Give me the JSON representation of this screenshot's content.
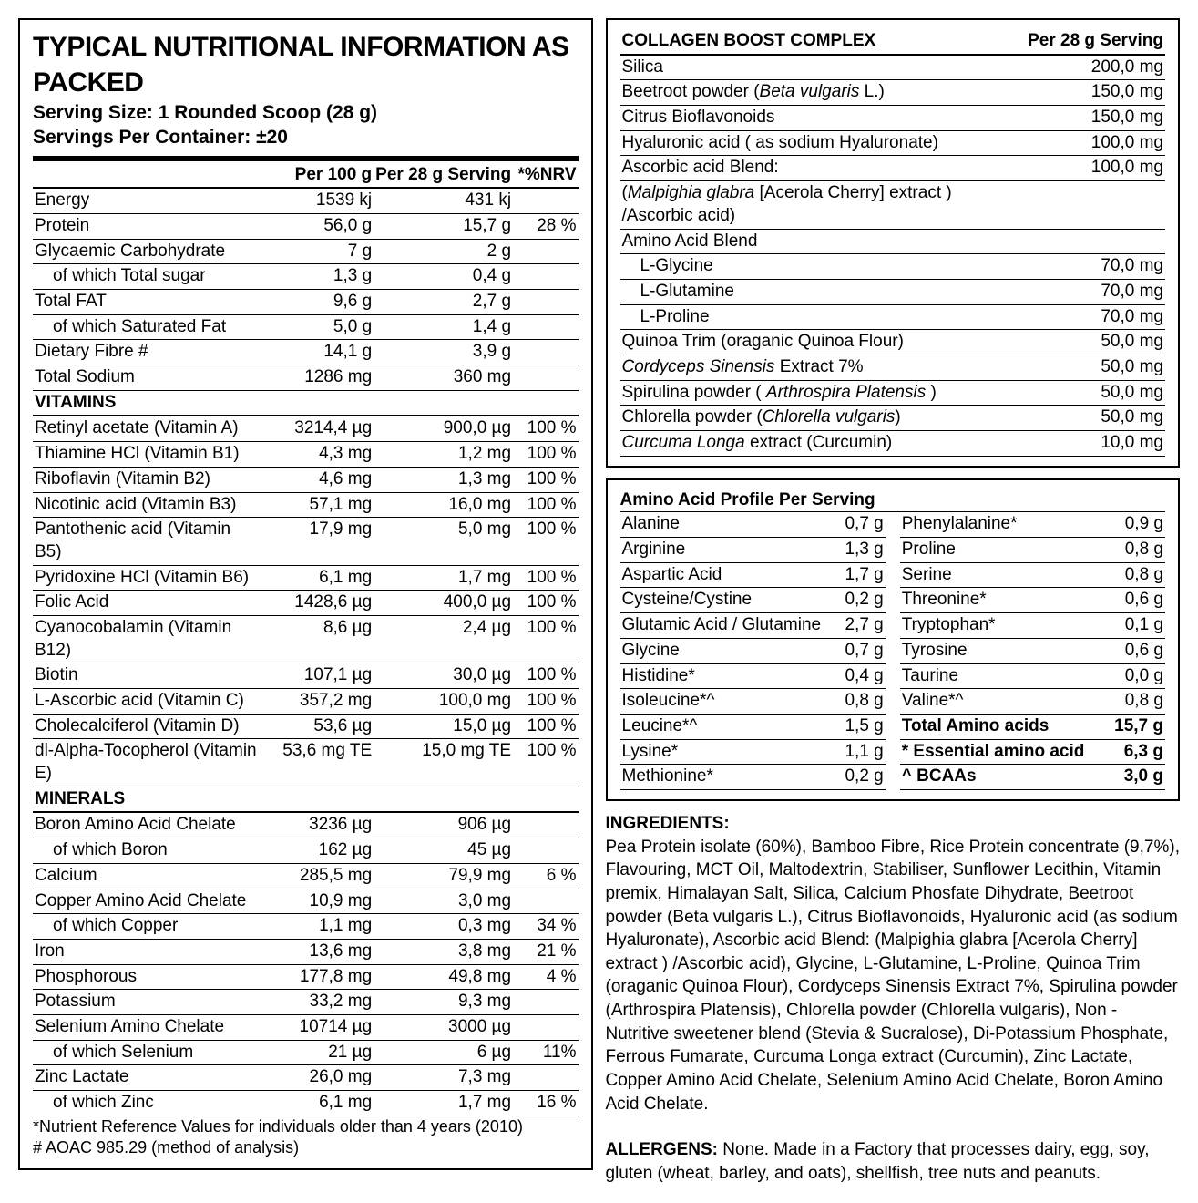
{
  "left": {
    "title": "TYPICAL NUTRITIONAL INFORMATION AS PACKED",
    "serving_size": "Serving Size: 1 Rounded Scoop (28 g)",
    "servings": "Servings Per Container: ±20",
    "cols": {
      "c1": "Per 100 g",
      "c2": "Per 28 g Serving",
      "c3": "*%NRV"
    },
    "sections": [
      {
        "rows": [
          {
            "l": "Energy",
            "c1": "1539 kj",
            "c2": "431 kj",
            "c3": ""
          },
          {
            "l": "Protein",
            "c1": "56,0 g",
            "c2": "15,7 g",
            "c3": "28 %"
          },
          {
            "l": "Glycaemic Carbohydrate",
            "c1": "7 g",
            "c2": "2 g",
            "c3": ""
          },
          {
            "l": "of which Total sugar",
            "indent": true,
            "c1": "1,3 g",
            "c2": "0,4 g",
            "c3": ""
          },
          {
            "l": "Total FAT",
            "c1": "9,6 g",
            "c2": "2,7 g",
            "c3": ""
          },
          {
            "l": "of which Saturated Fat",
            "indent": true,
            "c1": "5,0 g",
            "c2": "1,4 g",
            "c3": ""
          },
          {
            "l": "Dietary Fibre #",
            "c1": "14,1 g",
            "c2": "3,9 g",
            "c3": ""
          },
          {
            "l": "Total Sodium",
            "c1": "1286 mg",
            "c2": "360 mg",
            "c3": ""
          }
        ]
      },
      {
        "title": "VITAMINS",
        "rows": [
          {
            "l": "Retinyl acetate (Vitamin A)",
            "c1": "3214,4 µg",
            "c2": "900,0 µg",
            "c3": "100 %"
          },
          {
            "l": "Thiamine HCl (Vitamin B1)",
            "c1": "4,3 mg",
            "c2": "1,2 mg",
            "c3": "100 %"
          },
          {
            "l": "Riboflavin (Vitamin B2)",
            "c1": "4,6 mg",
            "c2": "1,3 mg",
            "c3": "100 %"
          },
          {
            "l": "Nicotinic acid (Vitamin B3)",
            "c1": "57,1 mg",
            "c2": "16,0 mg",
            "c3": "100 %"
          },
          {
            "l": "Pantothenic acid (Vitamin B5)",
            "c1": "17,9 mg",
            "c2": "5,0 mg",
            "c3": "100 %"
          },
          {
            "l": "Pyridoxine HCl (Vitamin B6)",
            "c1": "6,1 mg",
            "c2": "1,7 mg",
            "c3": "100 %"
          },
          {
            "l": "Folic Acid",
            "c1": "1428,6 µg",
            "c2": "400,0 µg",
            "c3": "100 %"
          },
          {
            "l": "Cyanocobalamin (Vitamin B12)",
            "c1": "8,6 µg",
            "c2": "2,4 µg",
            "c3": "100 %"
          },
          {
            "l": "Biotin",
            "c1": "107,1 µg",
            "c2": "30,0 µg",
            "c3": "100 %"
          },
          {
            "l": "L-Ascorbic acid (Vitamin C)",
            "c1": "357,2 mg",
            "c2": "100,0 mg",
            "c3": "100 %"
          },
          {
            "l": "Cholecalciferol (Vitamin D)",
            "c1": "53,6 µg",
            "c2": "15,0 µg",
            "c3": "100 %"
          },
          {
            "l": "dl-Alpha-Tocopherol (Vitamin E)",
            "c1": "53,6 mg TE",
            "c2": "15,0 mg TE",
            "c3": "100 %"
          }
        ]
      },
      {
        "title": "MINERALS",
        "rows": [
          {
            "l": "Boron Amino Acid Chelate",
            "c1": "3236 µg",
            "c2": "906 µg",
            "c3": ""
          },
          {
            "l": "of which Boron",
            "indent": true,
            "c1": "162 µg",
            "c2": "45 µg",
            "c3": ""
          },
          {
            "l": "Calcium",
            "c1": "285,5 mg",
            "c2": "79,9 mg",
            "c3": "6 %"
          },
          {
            "l": "Copper Amino Acid Chelate",
            "c1": "10,9 mg",
            "c2": "3,0 mg",
            "c3": ""
          },
          {
            "l": "of which Copper",
            "indent": true,
            "c1": "1,1 mg",
            "c2": "0,3 mg",
            "c3": "34 %"
          },
          {
            "l": "Iron",
            "c1": "13,6 mg",
            "c2": "3,8 mg",
            "c3": "21 %"
          },
          {
            "l": "Phosphorous",
            "c1": "177,8 mg",
            "c2": "49,8 mg",
            "c3": "4 %"
          },
          {
            "l": "Potassium",
            "c1": "33,2 mg",
            "c2": "9,3 mg",
            "c3": ""
          },
          {
            "l": "Selenium Amino Chelate",
            "c1": "10714 µg",
            "c2": "3000 µg",
            "c3": ""
          },
          {
            "l": "of which Selenium",
            "indent": true,
            "c1": "21 µg",
            "c2": "6 µg",
            "c3": "11%"
          },
          {
            "l": "Zinc Lactate",
            "c1": "26,0 mg",
            "c2": "7,3 mg",
            "c3": ""
          },
          {
            "l": "of which Zinc",
            "indent": true,
            "c1": "6,1 mg",
            "c2": "1,7 mg",
            "c3": "16 %"
          }
        ]
      }
    ],
    "foot1": "*Nutrient Reference Values for individuals older than 4 years (2010)",
    "foot2": "# AOAC 985.29 (method of analysis)"
  },
  "collagen": {
    "title": "COLLAGEN BOOST COMPLEX",
    "col": "Per 28 g Serving",
    "rows": [
      {
        "l": "Silica",
        "v": "200,0 mg"
      },
      {
        "html": "Beetroot powder (<i>Beta vulgaris</i> L.)",
        "v": "150,0 mg"
      },
      {
        "l": "Citrus Bioflavonoids",
        "v": "150,0 mg"
      },
      {
        "l": "Hyaluronic acid ( as sodium Hyaluronate)",
        "v": "100,0 mg"
      },
      {
        "l": "Ascorbic acid Blend:",
        "v": "100,0 mg"
      },
      {
        "html": "(<i>Malpighia glabra</i> [Acerola Cherry] extract ) /Ascorbic acid)",
        "v": ""
      },
      {
        "l": "Amino Acid Blend",
        "v": ""
      },
      {
        "l": "L-Glycine",
        "indent": true,
        "v": "70,0 mg"
      },
      {
        "l": "L-Glutamine",
        "indent": true,
        "v": "70,0 mg"
      },
      {
        "l": "L-Proline",
        "indent": true,
        "v": "70,0 mg"
      },
      {
        "l": "Quinoa Trim (oraganic Quinoa Flour)",
        "v": "50,0 mg"
      },
      {
        "html": "<i>Cordyceps Sinensis</i> Extract 7%",
        "v": "50,0 mg"
      },
      {
        "html": "Spirulina powder ( <i>Arthrospira Platensis</i> )",
        "v": "50,0 mg"
      },
      {
        "html": "Chlorella powder (<i>Chlorella vulgaris</i>)",
        "v": "50,0 mg"
      },
      {
        "html": "<i>Curcuma Longa</i> extract (Curcumin)",
        "v": "10,0 mg"
      }
    ]
  },
  "amino": {
    "title": "Amino Acid Profile Per Serving",
    "left": [
      {
        "l": "Alanine",
        "v": "0,7 g"
      },
      {
        "l": "Arginine",
        "v": "1,3 g"
      },
      {
        "l": "Aspartic Acid",
        "v": "1,7 g"
      },
      {
        "l": "Cysteine/Cystine",
        "v": "0,2 g"
      },
      {
        "l": "Glutamic Acid / Glutamine",
        "v": "2,7 g"
      },
      {
        "l": "Glycine",
        "v": "0,7 g"
      },
      {
        "l": "Histidine*",
        "v": "0,4 g"
      },
      {
        "l": "Isoleucine*^",
        "v": "0,8 g"
      },
      {
        "l": "Leucine*^",
        "v": "1,5 g"
      },
      {
        "l": "Lysine*",
        "v": "1,1 g"
      },
      {
        "l": "Methionine*",
        "v": "0,2 g"
      }
    ],
    "right": [
      {
        "l": "Phenylalanine*",
        "v": "0,9 g"
      },
      {
        "l": "Proline",
        "v": "0,8 g"
      },
      {
        "l": "Serine",
        "v": "0,8 g"
      },
      {
        "l": "Threonine*",
        "v": "0,6 g"
      },
      {
        "l": "Tryptophan*",
        "v": "0,1 g"
      },
      {
        "l": "Tyrosine",
        "v": "0,6 g"
      },
      {
        "l": "Taurine",
        "v": "0,0 g"
      },
      {
        "l": "Valine*^",
        "v": "0,8 g"
      },
      {
        "l": "Total Amino acids",
        "v": "15,7 g",
        "bold": true
      },
      {
        "l": "* Essential amino acid",
        "v": "6,3 g",
        "bold": true
      },
      {
        "l": "^ BCAAs",
        "v": "3,0 g",
        "bold": true
      }
    ]
  },
  "ing_title": "INGREDIENTS:",
  "ingredients": "Pea Protein isolate (60%), Bamboo Fibre, Rice Protein concentrate (9,7%), Flavouring, MCT Oil, Maltodextrin, Stabiliser, Sunflower Lecithin, Vitamin premix, Himalayan Salt, Silica, Calcium Phosfate Dihydrate, Beetroot powder (Beta vulgaris L.), Citrus Bioflavonoids, Hyaluronic acid (as sodium Hyaluronate), Ascorbic acid Blend: (Malpighia glabra [Acerola Cherry] extract ) /Ascorbic acid), Glycine, L-Glutamine, L-Proline, Quinoa Trim (oraganic Quinoa Flour), Cordyceps Sinensis Extract 7%, Spirulina powder (Arthrospira Platensis), Chlorella powder (Chlorella vulgaris), Non -Nutritive sweetener blend (Stevia & Sucralose), Di-Potassium Phosphate, Ferrous Fumarate, Curcuma Longa extract (Curcumin), Zinc Lactate, Copper Amino Acid Chelate, Selenium Amino Acid Chelate, Boron Amino Acid Chelate.",
  "all_title": "ALLERGENS:",
  "allergens": " None. Made in a Factory that processes dairy, egg, soy, gluten (wheat, barley, and oats), shellfish, tree nuts and peanuts."
}
